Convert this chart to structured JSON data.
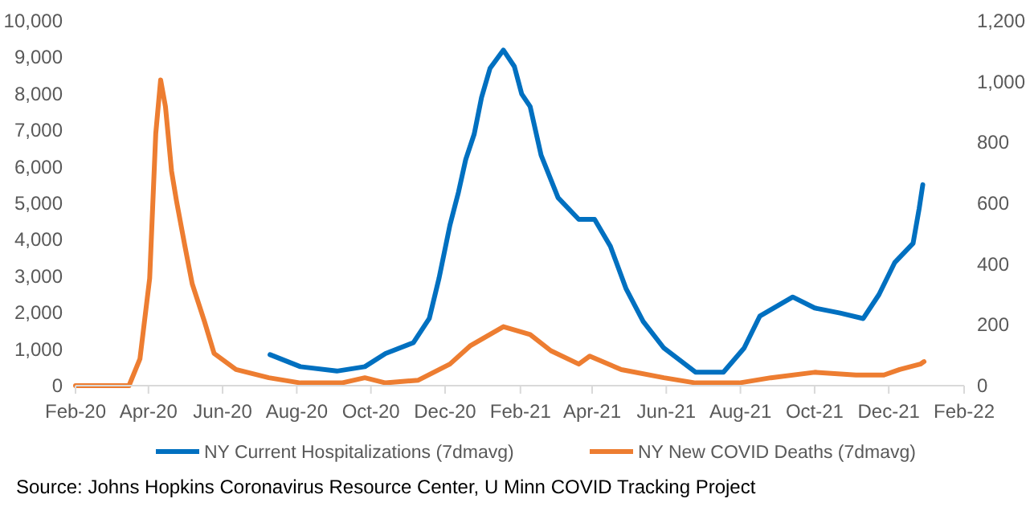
{
  "chart_data": {
    "type": "line",
    "xlim": [
      "2020-02-01",
      "2022-02-01"
    ],
    "xticks": [
      {
        "value": "2020-02-01",
        "label": "Feb-20"
      },
      {
        "value": "2020-04-01",
        "label": "Apr-20"
      },
      {
        "value": "2020-06-01",
        "label": "Jun-20"
      },
      {
        "value": "2020-08-01",
        "label": "Aug-20"
      },
      {
        "value": "2020-10-01",
        "label": "Oct-20"
      },
      {
        "value": "2020-12-01",
        "label": "Dec-20"
      },
      {
        "value": "2021-02-01",
        "label": "Feb-21"
      },
      {
        "value": "2021-04-01",
        "label": "Apr-21"
      },
      {
        "value": "2021-06-01",
        "label": "Jun-21"
      },
      {
        "value": "2021-08-01",
        "label": "Aug-21"
      },
      {
        "value": "2021-10-01",
        "label": "Oct-21"
      },
      {
        "value": "2021-12-01",
        "label": "Dec-21"
      },
      {
        "value": "2022-02-01",
        "label": "Feb-22"
      }
    ],
    "ylim": [
      0,
      10000
    ],
    "yticks": [
      {
        "value": 0,
        "label": "0"
      },
      {
        "value": 1000,
        "label": "1,000"
      },
      {
        "value": 2000,
        "label": "2,000"
      },
      {
        "value": 3000,
        "label": "3,000"
      },
      {
        "value": 4000,
        "label": "4,000"
      },
      {
        "value": 5000,
        "label": "5,000"
      },
      {
        "value": 6000,
        "label": "6,000"
      },
      {
        "value": 7000,
        "label": "7,000"
      },
      {
        "value": 8000,
        "label": "8,000"
      },
      {
        "value": 9000,
        "label": "9,000"
      },
      {
        "value": 10000,
        "label": "10,000"
      }
    ],
    "y2lim": [
      0,
      1200
    ],
    "y2ticks": [
      {
        "value": 0,
        "label": "0"
      },
      {
        "value": 200,
        "label": "200"
      },
      {
        "value": 400,
        "label": "400"
      },
      {
        "value": 600,
        "label": "600"
      },
      {
        "value": 800,
        "label": "800"
      },
      {
        "value": 1000,
        "label": "1,000"
      },
      {
        "value": 1200,
        "label": "1,200"
      }
    ],
    "grid": false,
    "legend": "bottom",
    "marker": "none",
    "line_style": "solid",
    "annotations": [
      "Source: Johns Hopkins Coronavirus Resource Center, U Minn COVID Tracking Project"
    ],
    "series": [
      {
        "name": "NY Current Hospitalizations (7dmavg)",
        "color": "#0070c0",
        "x": [
          "2020-07-10",
          "2020-08-04",
          "2020-09-03",
          "2020-09-26",
          "2020-10-13",
          "2020-11-05",
          "2020-11-18",
          "2020-11-26",
          "2020-12-05",
          "2020-12-12",
          "2020-12-18",
          "2020-12-25",
          "2020-12-31",
          "2021-01-07",
          "2021-01-18",
          "2021-01-27",
          "2021-02-02",
          "2021-02-09",
          "2021-02-18",
          "2021-03-04",
          "2021-03-21",
          "2021-04-03",
          "2021-04-16",
          "2021-04-29",
          "2021-05-13",
          "2021-05-30",
          "2021-06-25",
          "2021-07-18",
          "2021-08-04",
          "2021-08-17",
          "2021-09-13",
          "2021-10-01",
          "2021-10-22",
          "2021-11-10",
          "2021-11-23",
          "2021-12-06",
          "2021-12-21",
          "2021-12-26",
          "2021-12-29"
        ],
        "values": [
          850,
          520,
          400,
          520,
          880,
          1180,
          1840,
          2940,
          4400,
          5300,
          6200,
          6900,
          7900,
          8700,
          9200,
          8750,
          8000,
          7650,
          6320,
          5150,
          4560,
          4560,
          3820,
          2650,
          1760,
          1030,
          370,
          370,
          1030,
          1910,
          2430,
          2130,
          1990,
          1840,
          2500,
          3380,
          3900,
          4850,
          5510
        ]
      },
      {
        "name": "NY New COVID Deaths (7dmavg)",
        "color": "#ed7d31",
        "axis": "y2",
        "x": [
          "2020-02-01",
          "2020-03-16",
          "2020-03-25",
          "2020-04-02",
          "2020-04-07",
          "2020-04-11",
          "2020-04-15",
          "2020-04-20",
          "2020-04-24",
          "2020-05-01",
          "2020-05-07",
          "2020-05-17",
          "2020-05-25",
          "2020-06-12",
          "2020-07-09",
          "2020-08-04",
          "2020-09-07",
          "2020-09-26",
          "2020-10-13",
          "2020-11-09",
          "2020-12-05",
          "2020-12-22",
          "2021-01-18",
          "2021-02-09",
          "2021-02-26",
          "2021-03-21",
          "2021-03-30",
          "2021-04-25",
          "2021-05-30",
          "2021-06-25",
          "2021-07-31",
          "2021-08-26",
          "2021-10-01",
          "2021-11-04",
          "2021-11-27",
          "2021-12-10",
          "2021-12-27",
          "2021-12-30"
        ],
        "values": [
          0,
          0,
          88,
          353,
          829,
          1006,
          918,
          706,
          609,
          459,
          335,
          212,
          106,
          53,
          26,
          9,
          9,
          26,
          9,
          18,
          71,
          132,
          194,
          168,
          115,
          71,
          97,
          53,
          26,
          9,
          9,
          26,
          44,
          35,
          35,
          53,
          71,
          79
        ]
      }
    ]
  }
}
